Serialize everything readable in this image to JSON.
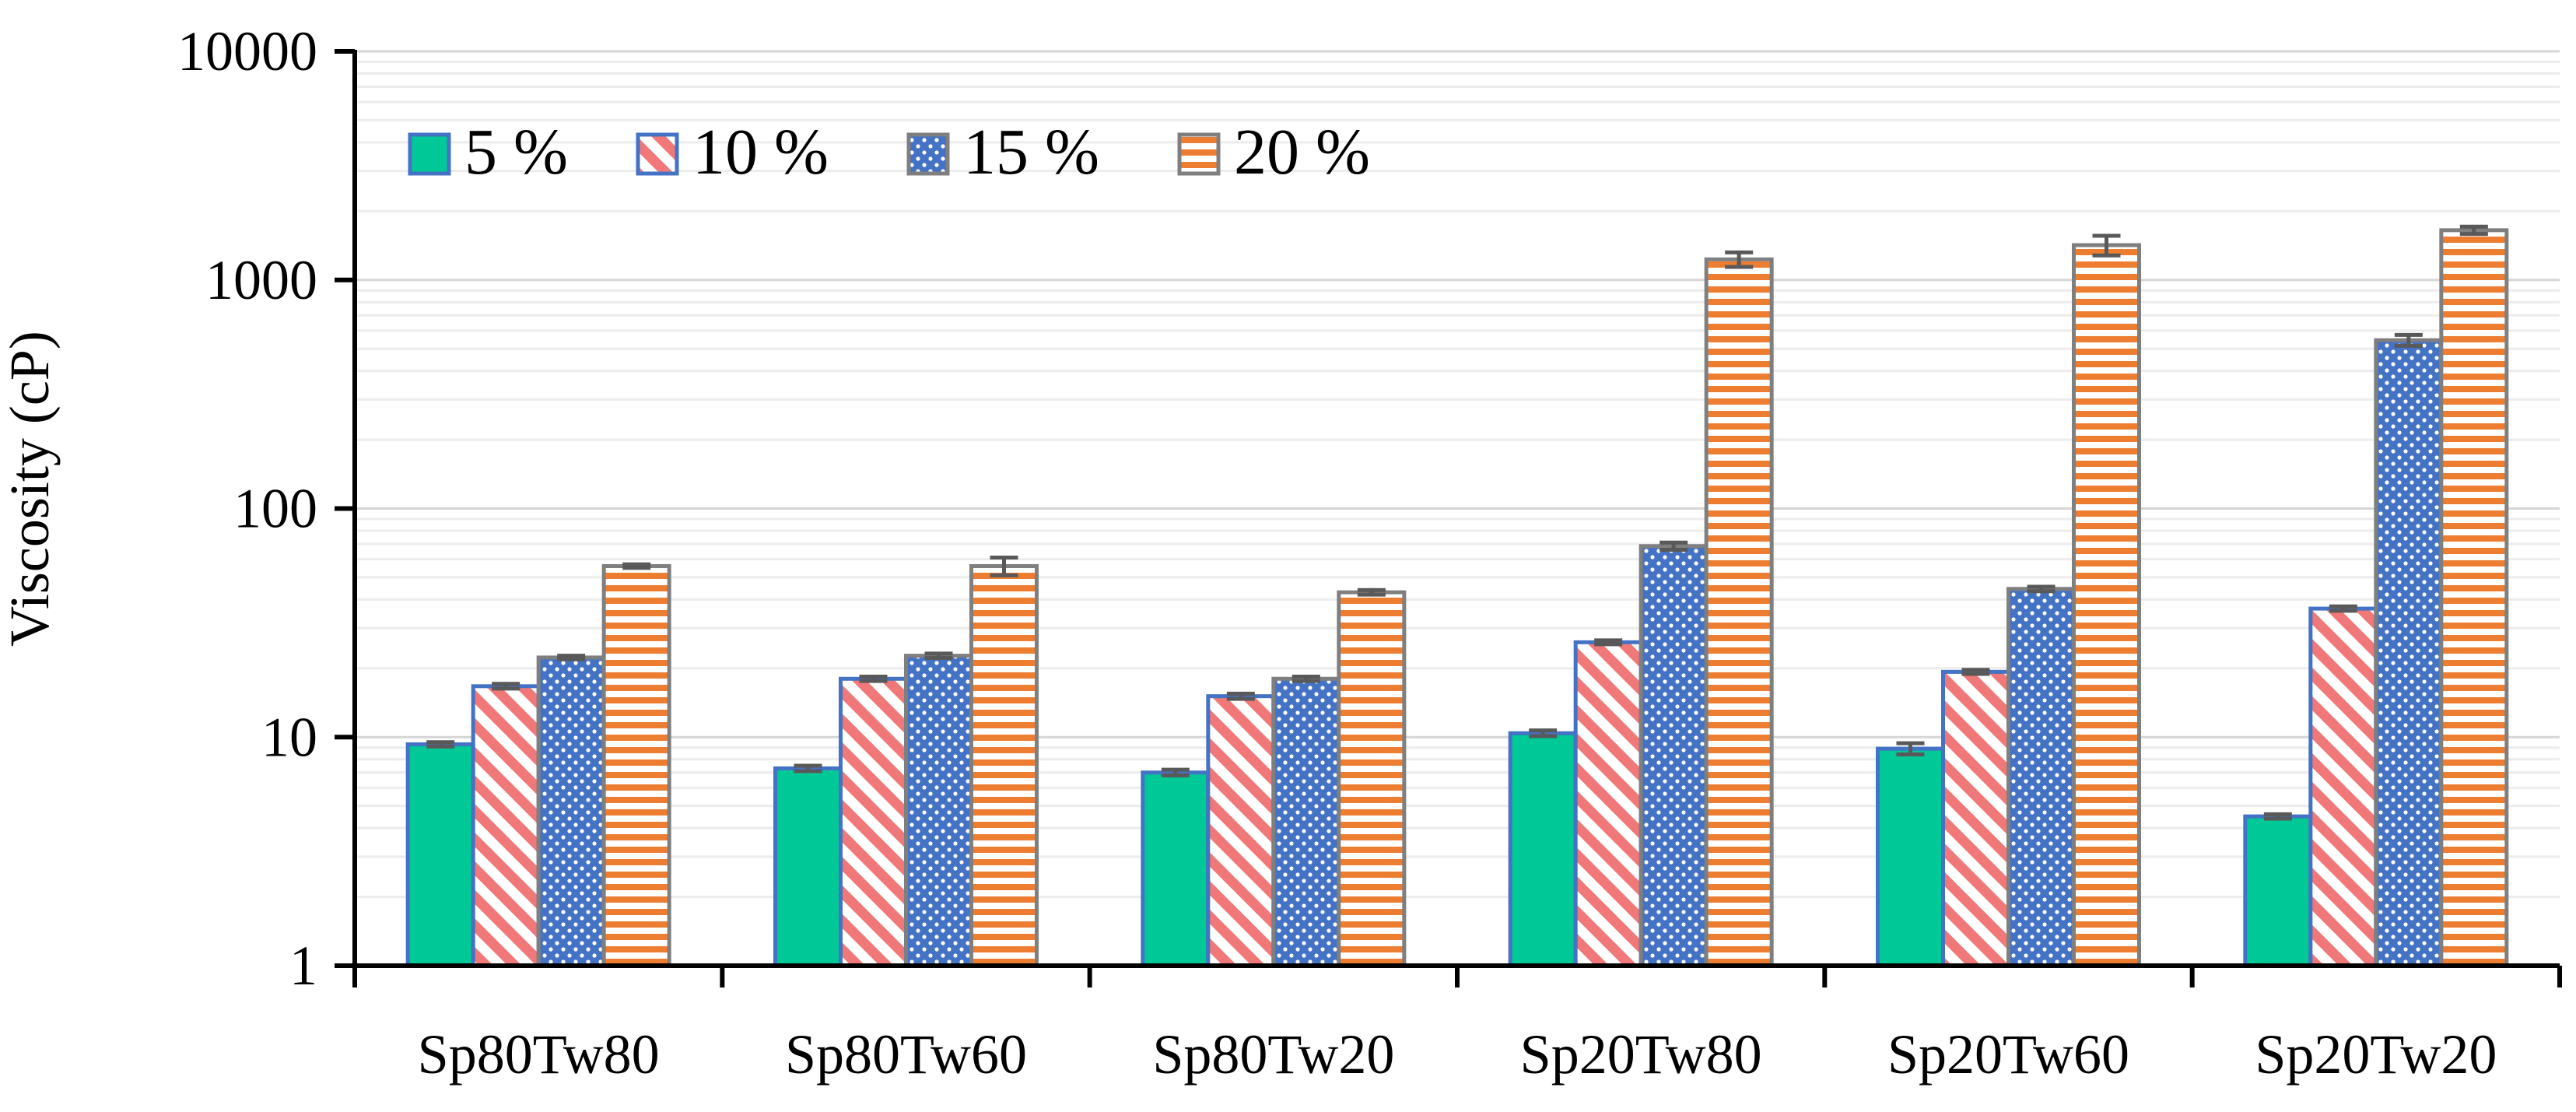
{
  "chart_data": {
    "type": "bar",
    "title": "",
    "xlabel": "",
    "ylabel": "Viscosity (cP)",
    "yscale": "log",
    "ylim": [
      1,
      10000
    ],
    "yticks": [
      "1",
      "10",
      "100",
      "1000",
      "10000"
    ],
    "grid": true,
    "legend_position": "top-left",
    "categories": [
      "Sp80Tw80",
      "Sp80Tw60",
      "Sp80Tw20",
      "Sp20Tw80",
      "Sp20Tw60",
      "Sp20Tw20"
    ],
    "series": [
      {
        "name": "5 %",
        "values": [
          9.3,
          7.3,
          7.0,
          10.4,
          8.9,
          4.5
        ],
        "errors": [
          0.2,
          0.2,
          0.2,
          0.3,
          0.5,
          0.1
        ],
        "color": "#00c896",
        "pattern": "solid"
      },
      {
        "name": "10 %",
        "values": [
          16.7,
          18.0,
          15.1,
          26.0,
          19.3,
          36.5
        ],
        "errors": [
          0.4,
          0.4,
          0.4,
          0.5,
          0.4,
          0.8
        ],
        "color": "#f07878",
        "pattern": "diagonal"
      },
      {
        "name": "15 %",
        "values": [
          22.3,
          22.7,
          18.0,
          68.5,
          44.5,
          545
        ],
        "errors": [
          0.4,
          0.5,
          0.4,
          2.5,
          1.0,
          30
        ],
        "color": "#4472c4",
        "pattern": "dots"
      },
      {
        "name": "20 %",
        "values": [
          56.0,
          56.0,
          43.0,
          1230,
          1420,
          1650
        ],
        "errors": [
          1.0,
          5.0,
          1.0,
          90,
          140,
          60
        ],
        "color": "#ed7d31",
        "pattern": "horizontal"
      }
    ]
  }
}
